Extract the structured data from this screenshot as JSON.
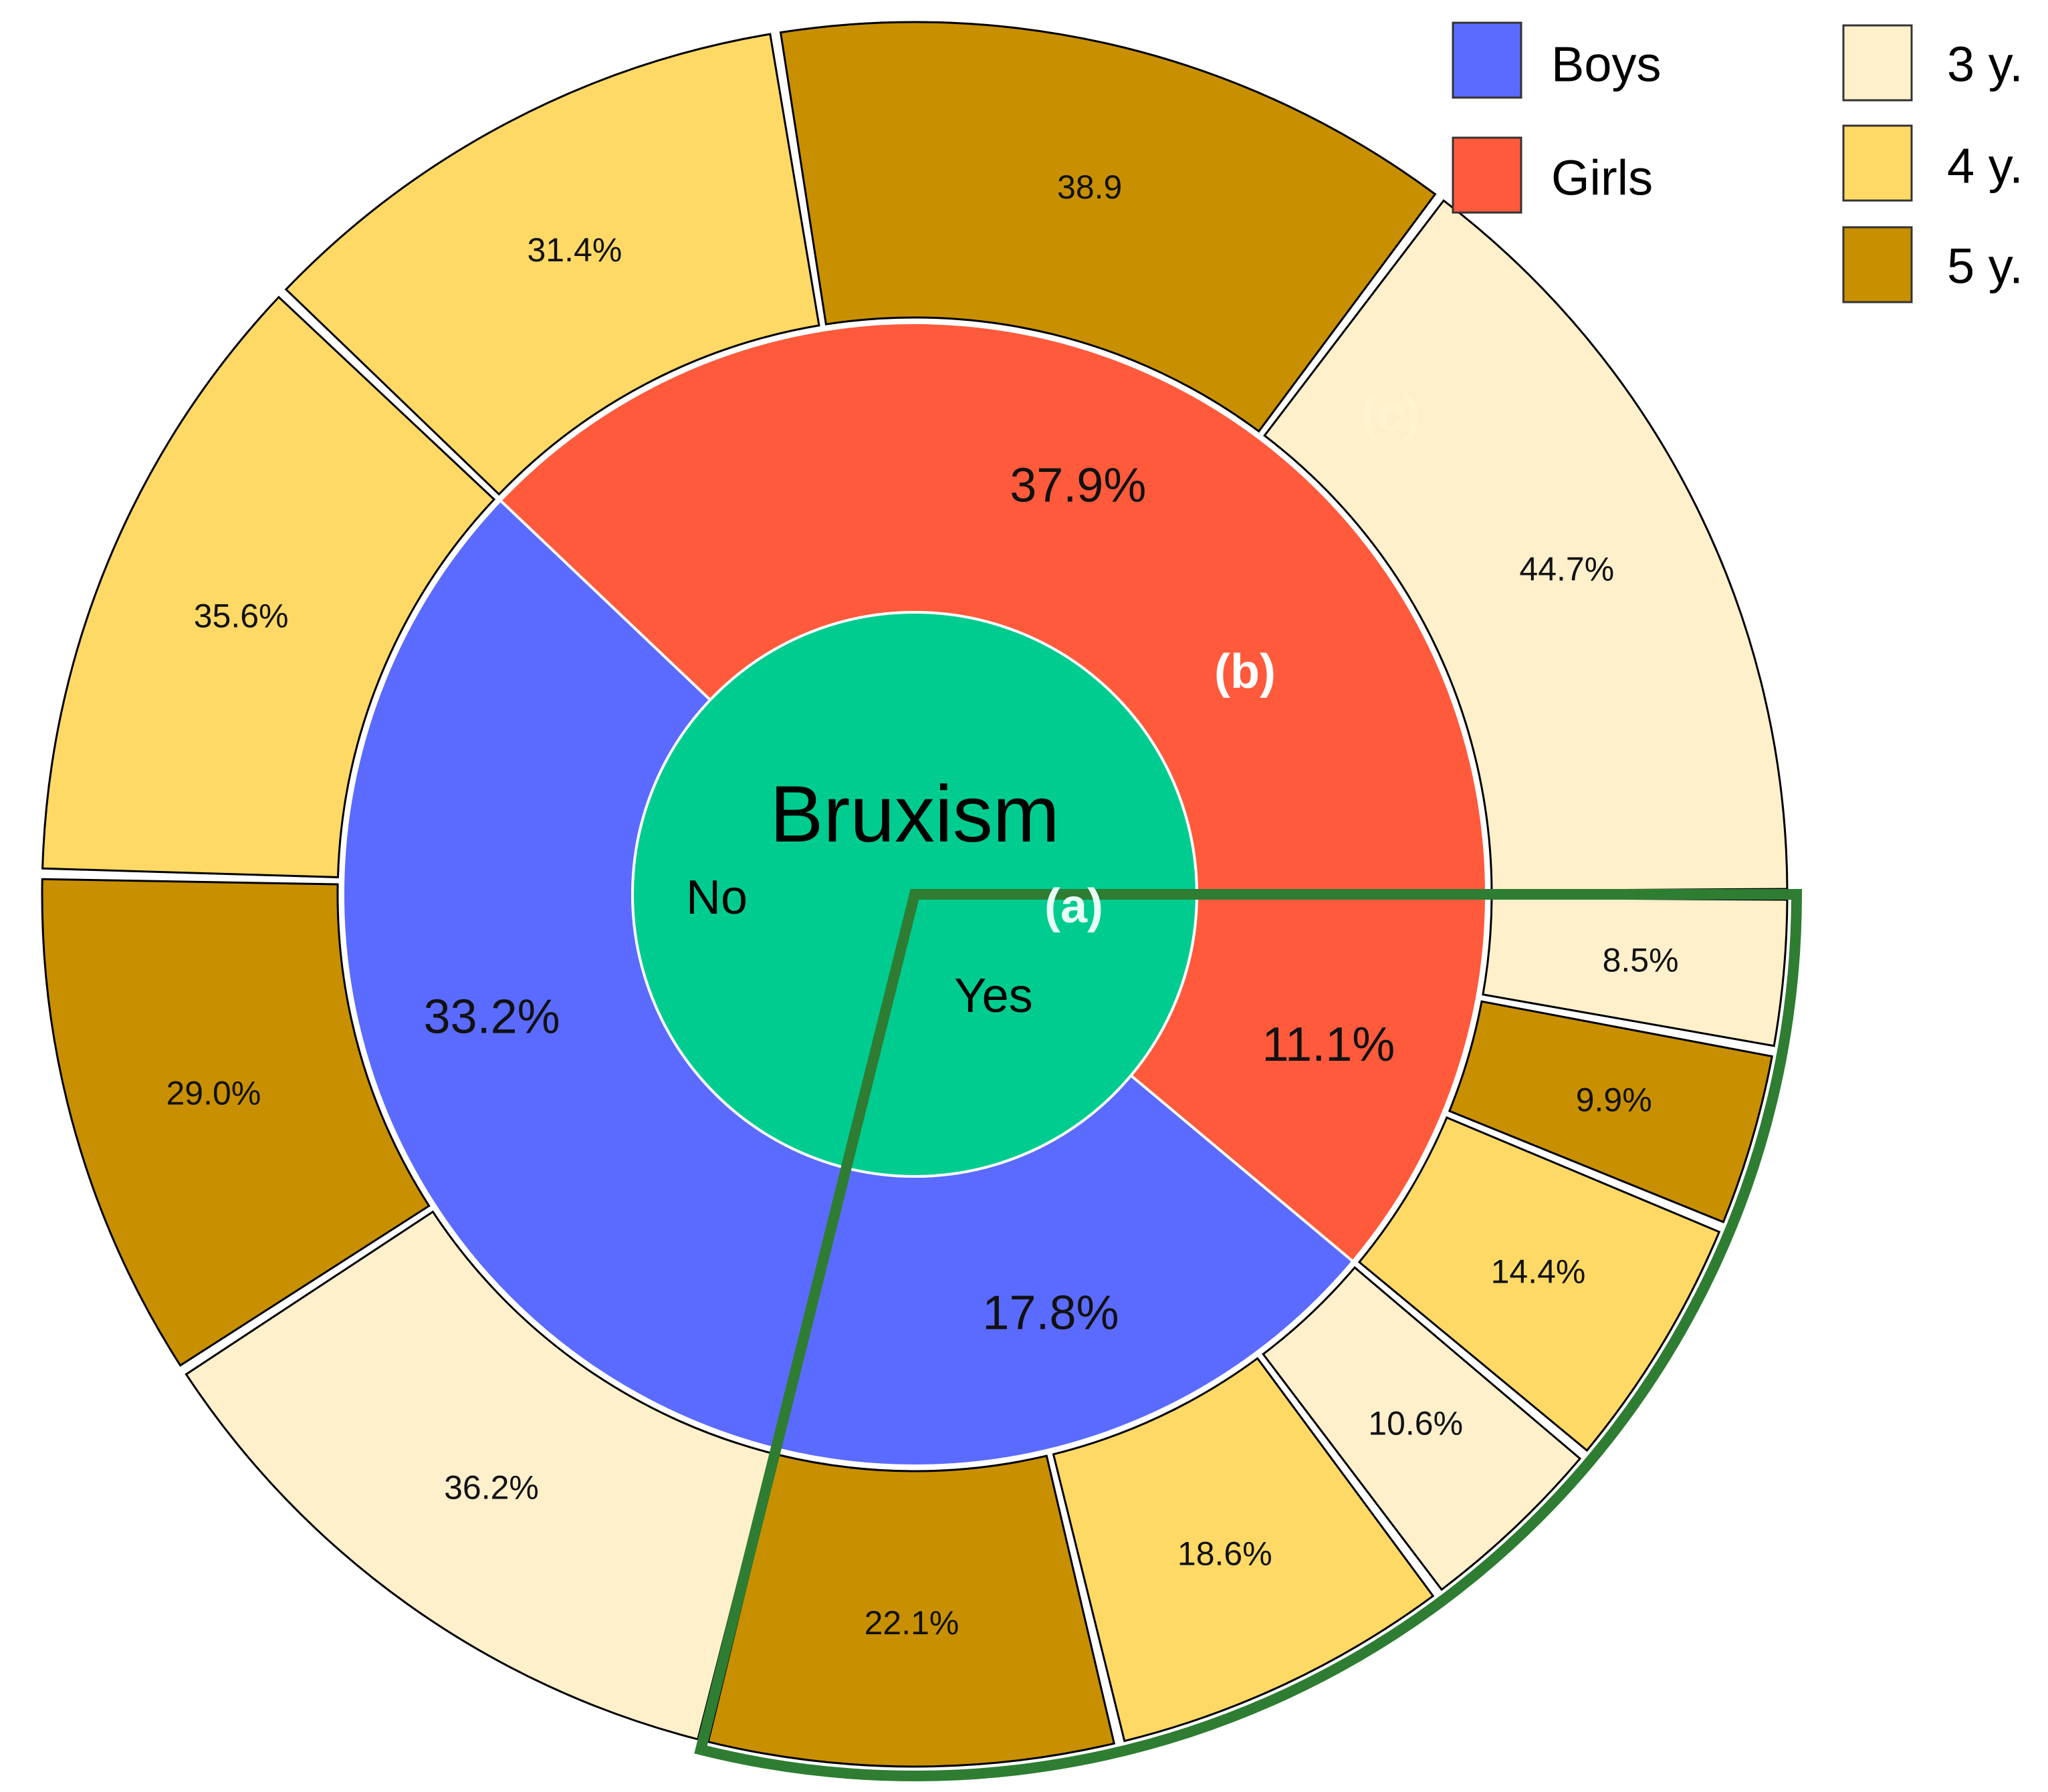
{
  "chart_data": {
    "type": "pie",
    "center_label": "Bruxism",
    "inner_ring": [
      {
        "name": "No",
        "slice": "no"
      },
      {
        "name": "Yes",
        "slice": "yes"
      }
    ],
    "middle_ring": [
      {
        "label": "37.9%",
        "value": 37.9,
        "group": "girls",
        "bruxism": "no"
      },
      {
        "label": "33.2%",
        "value": 33.2,
        "group": "boys",
        "bruxism": "no"
      },
      {
        "label": "17.8%",
        "value": 17.8,
        "group": "boys",
        "bruxism": "yes"
      },
      {
        "label": "11.1%",
        "value": 11.1,
        "group": "girls",
        "bruxism": "yes"
      }
    ],
    "outer_ring": [
      {
        "label": "44.7%",
        "value": 44.7,
        "age": "3y",
        "parent": 0
      },
      {
        "label": "38.9",
        "value": 38.9,
        "age": "5y",
        "parent": 0
      },
      {
        "label": "31.4%",
        "value": 31.4,
        "age": "4y",
        "parent": 0
      },
      {
        "label": "35.6%",
        "value": 35.6,
        "age": "4y",
        "parent": 1
      },
      {
        "label": "29.0%",
        "value": 29.0,
        "age": "5y",
        "parent": 1
      },
      {
        "label": "36.2%",
        "value": 36.2,
        "age": "3y",
        "parent": 1
      },
      {
        "label": "22.1%",
        "value": 22.1,
        "age": "5y",
        "parent": 2
      },
      {
        "label": "18.6%",
        "value": 18.6,
        "age": "4y",
        "parent": 2
      },
      {
        "label": "10.6%",
        "value": 10.6,
        "age": "3y",
        "parent": 2
      },
      {
        "label": "14.4%",
        "value": 14.4,
        "age": "4y",
        "parent": 3
      },
      {
        "label": "9.9%",
        "value": 9.9,
        "age": "5y",
        "parent": 3
      },
      {
        "label": "8.5%",
        "value": 8.5,
        "age": "3y",
        "parent": 3
      }
    ],
    "annotations": [
      "(a)",
      "(b)",
      "(c)"
    ],
    "legend": {
      "placement": "top-right",
      "gender": [
        {
          "label": "Boys",
          "key": "boys"
        },
        {
          "label": "Girls",
          "key": "girls"
        }
      ],
      "age": [
        {
          "label": "3 y.",
          "key": "3y"
        },
        {
          "label": "4 y.",
          "key": "4y"
        },
        {
          "label": "5 y.",
          "key": "5y"
        }
      ]
    },
    "colors": {
      "center": "#00cc90",
      "boys": "#5b6bff",
      "girls": "#ff5a3c",
      "3y": "#fff0cc",
      "4y": "#ffd966",
      "5y": "#c89000",
      "highlight": "#2e7d32"
    }
  }
}
